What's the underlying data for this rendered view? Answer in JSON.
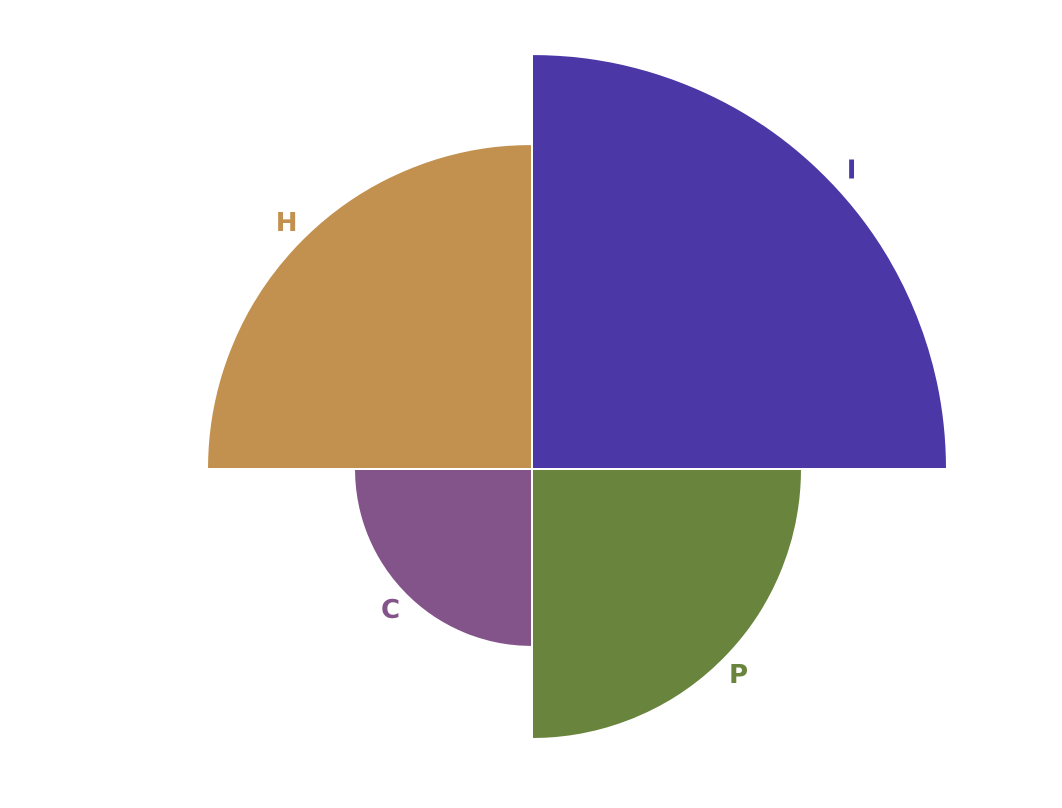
{
  "chart_data": {
    "type": "polar-area",
    "title": "",
    "categories": [
      "I",
      "P",
      "C",
      "H"
    ],
    "values": [
      415,
      270,
      178,
      325
    ],
    "colors": [
      "#4b37a6",
      "#68843d",
      "#835489",
      "#c3914f"
    ],
    "start_angle_deg": 0,
    "direction": "clockwise",
    "legend": "none",
    "grid": false
  }
}
